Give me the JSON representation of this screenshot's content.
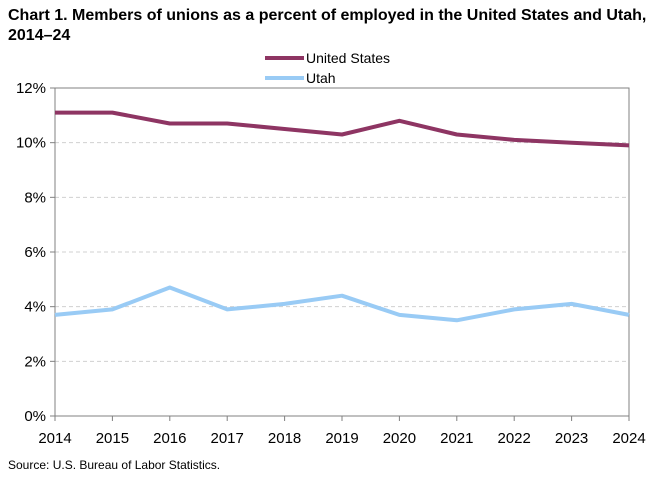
{
  "chart_data": {
    "type": "line",
    "title": "Chart 1. Members of unions as a percent of employed  in the United States and Utah, 2014–24",
    "xlabel": "",
    "ylabel": "",
    "x": [
      "2014",
      "2015",
      "2016",
      "2017",
      "2018",
      "2019",
      "2020",
      "2021",
      "2022",
      "2023",
      "2024"
    ],
    "ylim": [
      0,
      12
    ],
    "y_ticks": [
      0,
      2,
      4,
      6,
      8,
      10,
      12
    ],
    "y_tick_labels": [
      "0%",
      "2%",
      "4%",
      "6%",
      "8%",
      "10%",
      "12%"
    ],
    "grid": "horizontal dashed",
    "legend_position": "top-center",
    "series": [
      {
        "name": "United States",
        "color": "#8e3563",
        "values": [
          11.1,
          11.1,
          10.7,
          10.7,
          10.5,
          10.3,
          10.8,
          10.3,
          10.1,
          10.0,
          9.9
        ]
      },
      {
        "name": "Utah",
        "color": "#99cbf5",
        "values": [
          3.7,
          3.9,
          4.7,
          3.9,
          4.1,
          4.4,
          3.7,
          3.5,
          3.9,
          4.1,
          3.7
        ]
      }
    ]
  },
  "source": "Source:  U.S. Bureau  of Labor Statistics."
}
